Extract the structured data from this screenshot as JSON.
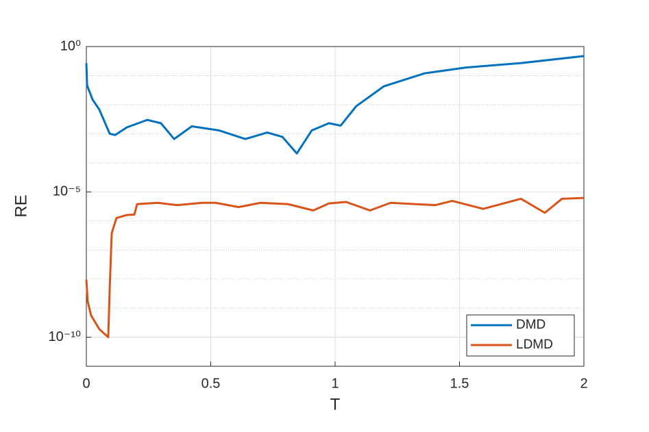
{
  "chart_data": {
    "type": "line",
    "xlabel": "T",
    "ylabel": "RE",
    "xlim": [
      0,
      2
    ],
    "xticks": [
      0,
      0.5,
      1,
      1.5,
      2
    ],
    "ylim": [
      1e-11,
      1
    ],
    "ylog": true,
    "yticks": [
      {
        "value": 1e-10,
        "label": "10⁻¹⁰"
      },
      {
        "value": 1e-05,
        "label": "10⁻⁵"
      },
      {
        "value": 1,
        "label": "10⁰"
      }
    ],
    "yminorticks": [
      1e-09,
      1e-08,
      1e-07,
      1e-06,
      0.0001,
      0.001,
      0.01,
      0.1
    ],
    "grid": true,
    "legend_loc": "southeast",
    "series": [
      {
        "name": "DMD",
        "color": "#0072bd",
        "x": [
          0,
          0.003,
          0.025,
          0.052,
          0.094,
          0.116,
          0.163,
          0.245,
          0.3,
          0.353,
          0.424,
          0.534,
          0.639,
          0.727,
          0.788,
          0.846,
          0.906,
          0.975,
          1.022,
          1.085,
          1.196,
          1.36,
          1.526,
          1.747,
          2
        ],
        "values": [
          0.27,
          0.046,
          0.015,
          0.0068,
          0.001,
          0.00091,
          0.00166,
          0.003,
          0.0023,
          0.00066,
          0.0018,
          0.0013,
          0.00066,
          0.0011,
          0.00078,
          0.00021,
          0.0013,
          0.0023,
          0.0019,
          0.0089,
          0.043,
          0.12,
          0.19,
          0.27,
          0.47
        ]
      },
      {
        "name": "LDMD",
        "color": "#d95319",
        "x": [
          0,
          0.0055,
          0.019,
          0.052,
          0.088,
          0.094,
          0.102,
          0.121,
          0.163,
          0.193,
          0.204,
          0.287,
          0.364,
          0.466,
          0.52,
          0.612,
          0.7,
          0.81,
          0.912,
          0.975,
          1.044,
          1.14,
          1.223,
          1.402,
          1.471,
          1.595,
          1.747,
          1.843,
          1.912,
          2
        ],
        "values": [
          9.5e-09,
          1.7e-09,
          5.6e-10,
          1.9e-10,
          1e-10,
          5e-09,
          3.8e-07,
          1.26e-06,
          1.6e-06,
          1.66e-06,
          3.8e-06,
          4.2e-06,
          3.5e-06,
          4.2e-06,
          4.2e-06,
          3e-06,
          4.2e-06,
          3.8e-06,
          2.3e-06,
          4e-06,
          4.5e-06,
          2.3e-06,
          4.2e-06,
          3.5e-06,
          4.9e-06,
          2.6e-06,
          5.8e-06,
          1.9e-06,
          5.8e-06,
          6.2e-06
        ]
      }
    ]
  }
}
